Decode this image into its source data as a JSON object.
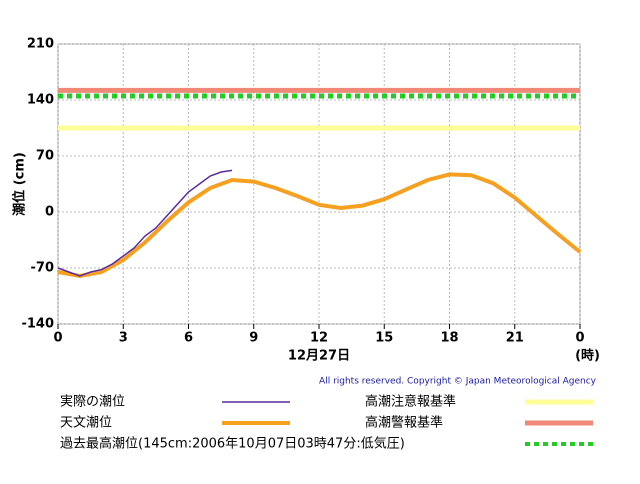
{
  "chart_data": {
    "type": "line",
    "ylabel": "潮位 (cm)",
    "xlabel": "12月27日",
    "xunit": "(時)",
    "copyright": "All rights reserved. Copyright © Japan Meteorological Agency",
    "xlim": [
      0,
      24
    ],
    "xticks": [
      0,
      3,
      6,
      9,
      12,
      15,
      18,
      21,
      {
        "value": 24,
        "label": "0"
      }
    ],
    "ylim": [
      -140,
      210
    ],
    "yticks": [
      -140,
      -70,
      0,
      70,
      140,
      210
    ],
    "grid": true,
    "series": [
      {
        "name": "実際の潮位",
        "color": "#5a2aa0",
        "x": [
          0,
          0.5,
          1,
          1.5,
          2,
          2.5,
          3,
          3.5,
          4,
          4.5,
          5,
          5.5,
          6,
          6.5,
          7,
          7.5,
          8
        ],
        "values": [
          -70,
          -75,
          -80,
          -75,
          -72,
          -65,
          -55,
          -45,
          -30,
          -20,
          -5,
          10,
          25,
          35,
          45,
          50,
          52
        ]
      },
      {
        "name": "天文潮位",
        "color": "#f5a020",
        "x": [
          0,
          1,
          2,
          3,
          4,
          5,
          6,
          7,
          8,
          9,
          10,
          11,
          12,
          13,
          14,
          15,
          16,
          17,
          18,
          19,
          20,
          21,
          22,
          23,
          24
        ],
        "values": [
          -75,
          -80,
          -75,
          -60,
          -38,
          -12,
          12,
          30,
          40,
          38,
          30,
          20,
          9,
          5,
          8,
          16,
          28,
          40,
          47,
          46,
          36,
          18,
          -5,
          -28,
          -50
        ]
      }
    ],
    "reference_lines": [
      {
        "name": "高潮注意報基準",
        "color": "#ffff99",
        "value": 105,
        "style": "solid"
      },
      {
        "name": "高潮警報基準",
        "color": "#f08878",
        "value": 152,
        "style": "solid"
      },
      {
        "name": "過去最高潮位(145cm:2006年10月07日03時47分:低気圧)",
        "color": "#22cc22",
        "value": 145,
        "style": "dotted"
      }
    ]
  }
}
